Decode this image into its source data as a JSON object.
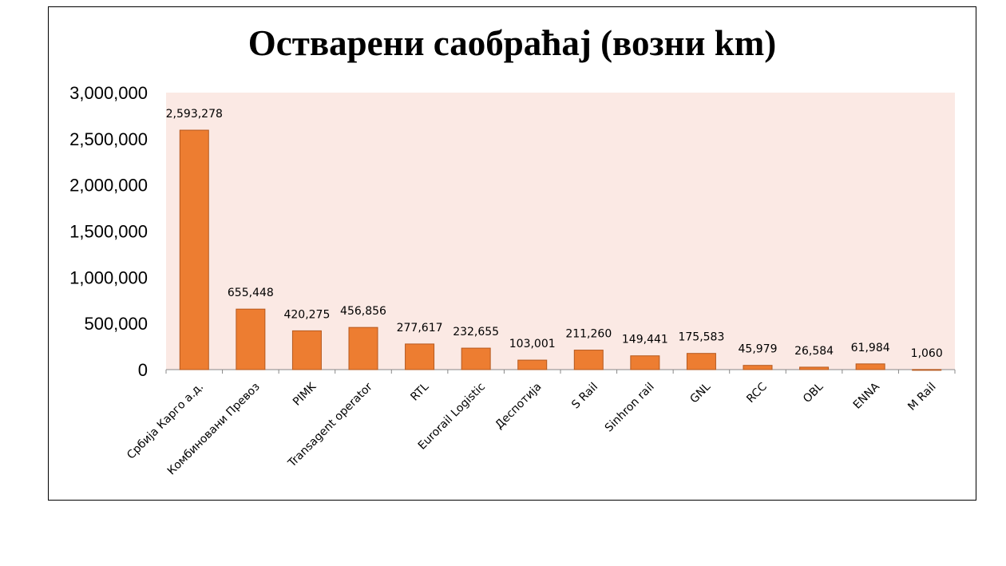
{
  "chart_data": {
    "type": "bar",
    "title": "Остварени саобраћај (возни km)",
    "xlabel": "",
    "ylabel": "",
    "ylim": [
      0,
      3000000
    ],
    "yticks": [
      0,
      500000,
      1000000,
      1500000,
      2000000,
      2500000,
      3000000
    ],
    "ytick_labels": [
      "0",
      "500,000",
      "1,000,000",
      "1,500,000",
      "2,000,000",
      "2,500,000",
      "3,000,000"
    ],
    "categories": [
      "Србија Карго а.д.",
      "Комбиновани Превоз",
      "PIMK",
      "Transagent operator",
      "RTL",
      "Eurorail Logistic",
      "Деспотија",
      "S Rail",
      "Sinhron rail",
      "GNL",
      "RCC",
      "OBL",
      "ENNA",
      "M Rail"
    ],
    "values": [
      2593278,
      655448,
      420275,
      456856,
      277617,
      232655,
      103001,
      211260,
      149441,
      175583,
      45979,
      26584,
      61984,
      1060
    ],
    "data_labels": [
      "2,593,278",
      "655,448",
      "420,275",
      "456,856",
      "277,617",
      "232,655",
      "103,001",
      "211,260",
      "149,441",
      "175,583",
      "45,979",
      "26,584",
      "61,984",
      "1,060"
    ],
    "grid": false,
    "legend": "none",
    "colors": {
      "bar": "#ED7D31",
      "bar_edge": "#B5591F",
      "plot_bg": "#FBE9E4"
    }
  }
}
